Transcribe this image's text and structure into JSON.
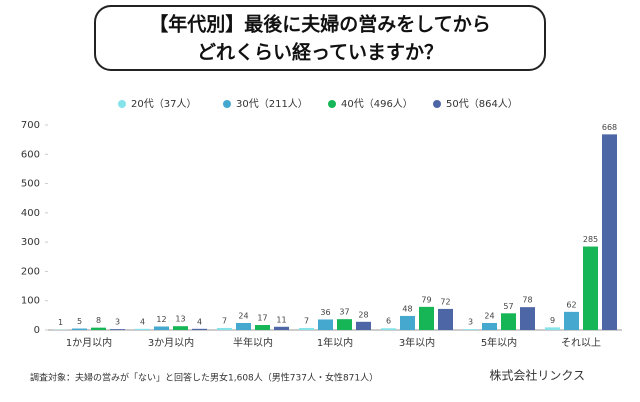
{
  "chart_data": {
    "type": "bar",
    "title": [
      "【年代別】最後に夫婦の営みをしてから",
      "どれくらい経っていますか？"
    ],
    "categories": [
      "1か月以内",
      "3か月以内",
      "半年以内",
      "1年以内",
      "3年以内",
      "5年以内",
      "それ以上"
    ],
    "series": [
      {
        "name": "20代（37人）",
        "color": "#86e3ea",
        "values": [
          1,
          4,
          7,
          7,
          6,
          3,
          9
        ]
      },
      {
        "name": "30代（211人）",
        "color": "#45a9cf",
        "values": [
          5,
          12,
          24,
          36,
          48,
          24,
          62
        ]
      },
      {
        "name": "40代（496人）",
        "color": "#16b657",
        "values": [
          8,
          13,
          17,
          37,
          79,
          57,
          285
        ]
      },
      {
        "name": "50代（864人）",
        "color": "#4d66a6",
        "values": [
          3,
          4,
          11,
          28,
          72,
          78,
          668
        ]
      }
    ],
    "ylim": [
      0,
      700
    ],
    "yticks": [
      0,
      100,
      200,
      300,
      400,
      500,
      600,
      700
    ],
    "grid": false,
    "footnote": "調査対象：夫婦の営みが「ない」と回答した男女1,608人（男性737人・女性871人）",
    "source": "株式会社リンクス"
  }
}
